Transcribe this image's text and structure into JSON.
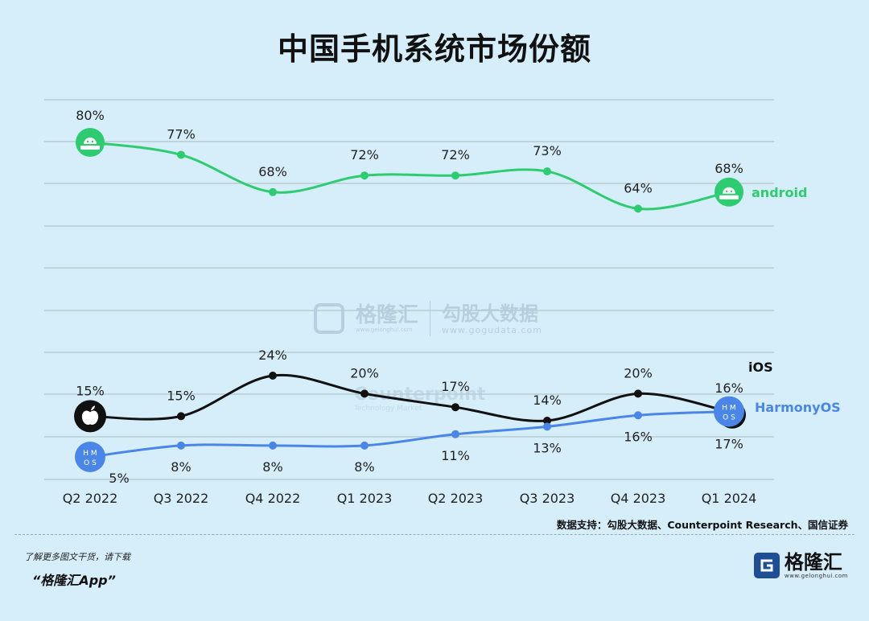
{
  "title": "中国手机系统市场份额",
  "watermark": {
    "brand": "格隆汇",
    "brand_url": "www.gelonghui.com",
    "data_brand": "勾股大数据",
    "data_url": "www.gogudata.com",
    "counterpoint": "Counterpoint",
    "counterpoint_sub": "Technology Market"
  },
  "source": "数据支持：勾股大数据、Counterpoint Research、国信证券",
  "footer": {
    "note": "了解更多图文干货，请下载",
    "app": "“格隆汇App”",
    "brand_name": "格隆汇",
    "brand_url": "www.gelonghui.com"
  },
  "colors": {
    "android": "#2ecc71",
    "ios": "#111111",
    "harmony": "#4a86e8",
    "grid": "#b9cbd3",
    "background": "#d6eef9"
  },
  "chart_data": {
    "type": "line",
    "title": "中国手机系统市场份额",
    "categories": [
      "Q2 2022",
      "Q3 2022",
      "Q4 2022",
      "Q1 2023",
      "Q2 2023",
      "Q3 2023",
      "Q4 2023",
      "Q1 2024"
    ],
    "series": [
      {
        "name": "android",
        "values": [
          80,
          77,
          68,
          72,
          72,
          73,
          64,
          68
        ],
        "labels": [
          "80%",
          "77%",
          "68%",
          "72%",
          "72%",
          "73%",
          "64%",
          "68%"
        ],
        "color": "#2ecc71",
        "icon": "android-icon"
      },
      {
        "name": "iOS",
        "values": [
          15,
          15,
          24,
          20,
          17,
          14,
          20,
          16
        ],
        "labels": [
          "15%",
          "15%",
          "24%",
          "20%",
          "17%",
          "14%",
          "20%",
          "16%"
        ],
        "color": "#111111",
        "icon": "apple-icon"
      },
      {
        "name": "HarmonyOS",
        "values": [
          5,
          8,
          8,
          8,
          11,
          13,
          16,
          17
        ],
        "labels": [
          "5%",
          "8%",
          "8%",
          "8%",
          "11%",
          "13%",
          "16%",
          "17%"
        ],
        "color": "#4a86e8",
        "icon": "hmos-icon",
        "icon_text": [
          "H M",
          "O S"
        ]
      }
    ],
    "grid": true,
    "legend": "right"
  }
}
